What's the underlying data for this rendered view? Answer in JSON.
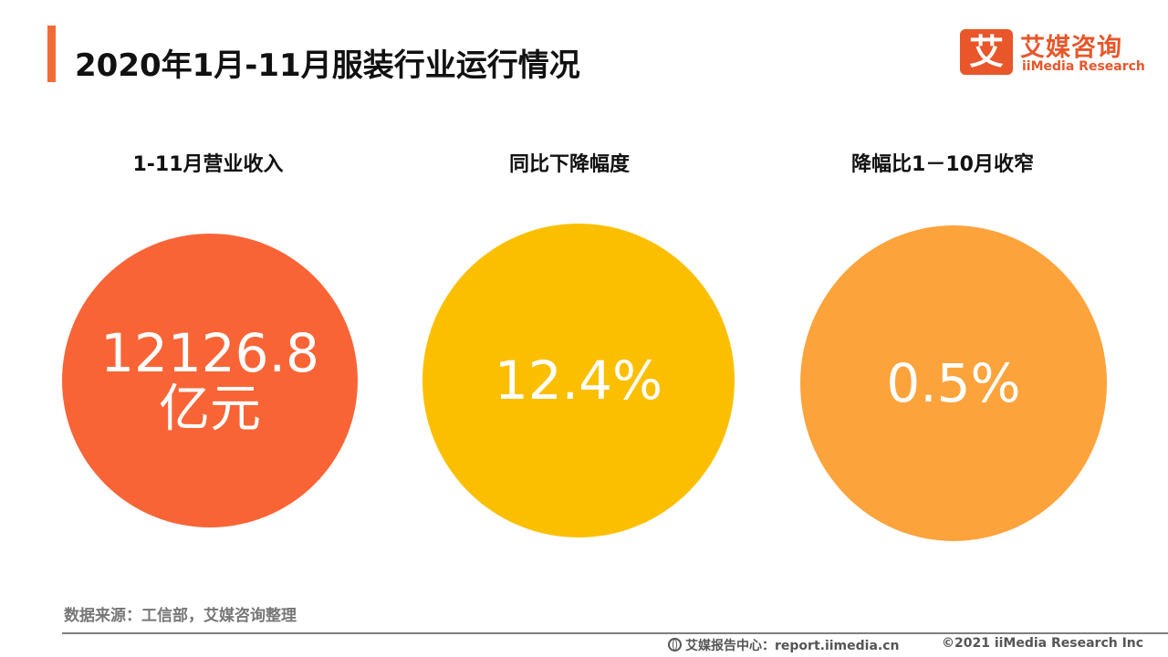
{
  "header": {
    "title": "2020年1月-11月服装行业运行情况"
  },
  "logo": {
    "mark": "艾",
    "name_cn": "艾媒咨询",
    "name_en": "iiMedia Research",
    "brand_color": "#e8562a"
  },
  "metrics": [
    {
      "label": "1-11月营业收入",
      "value": "12126.8",
      "unit": "亿元",
      "color": "#f96436"
    },
    {
      "label": "同比下降幅度",
      "value": "12.4%",
      "unit": "",
      "color": "#fcbf00"
    },
    {
      "label": "降幅比1－10月收窄",
      "value": "0.5%",
      "unit": "",
      "color": "#fda33c"
    }
  ],
  "footer": {
    "source": "数据来源：工信部，艾媒咨询整理",
    "report_center": "艾媒报告中心：report.iimedia.cn",
    "copyright": "©2021  iiMedia Research  Inc",
    "globe_icon": "globe-icon"
  }
}
